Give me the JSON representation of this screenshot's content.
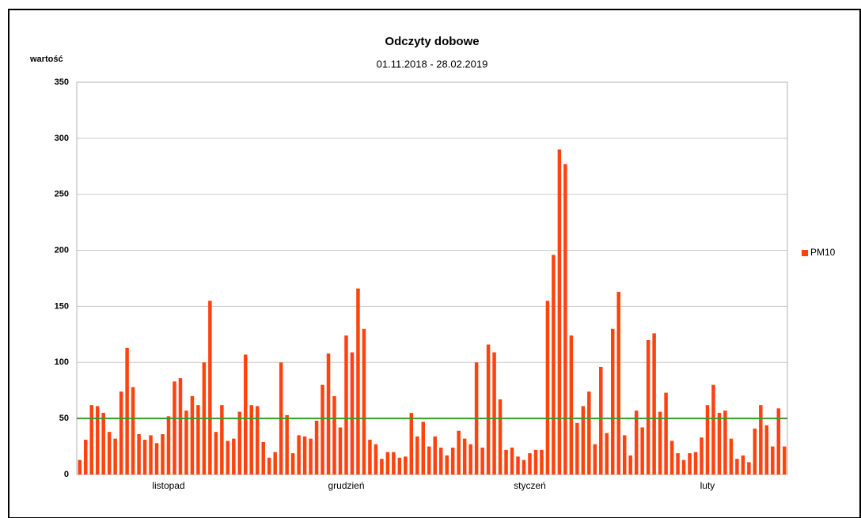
{
  "chart_data": {
    "type": "bar",
    "title": "Odczyty dobowe",
    "subtitle": "01.11.2018 - 28.02.2019",
    "y_label": "wartość",
    "categories": [
      null,
      null,
      null,
      null,
      null,
      null,
      null,
      null,
      null,
      null,
      null,
      null,
      null,
      null,
      null,
      "listopad",
      null,
      null,
      null,
      null,
      null,
      null,
      null,
      null,
      null,
      null,
      null,
      null,
      null,
      null,
      null,
      null,
      null,
      null,
      null,
      null,
      null,
      null,
      null,
      null,
      null,
      null,
      null,
      null,
      null,
      "grudzień",
      null,
      null,
      null,
      null,
      null,
      null,
      null,
      null,
      null,
      null,
      null,
      null,
      null,
      null,
      null,
      null,
      null,
      null,
      null,
      null,
      null,
      null,
      null,
      null,
      null,
      null,
      null,
      null,
      null,
      null,
      "styczeń",
      null,
      null,
      null,
      null,
      null,
      null,
      null,
      null,
      null,
      null,
      null,
      null,
      null,
      null,
      null,
      null,
      null,
      null,
      null,
      null,
      null,
      null,
      null,
      null,
      null,
      null,
      null,
      null,
      null,
      "luty",
      null,
      null,
      null,
      null,
      null,
      null,
      null,
      null,
      null,
      null,
      null,
      null,
      null
    ],
    "series": [
      {
        "name": "PM10",
        "color": "#ff420e",
        "values": [
          13,
          31,
          62,
          61,
          55,
          38,
          32,
          74,
          113,
          78,
          36,
          31,
          35,
          28,
          36,
          52,
          83,
          86,
          57,
          70,
          62,
          100,
          155,
          38,
          62,
          30,
          32,
          56,
          107,
          62,
          61,
          29,
          15,
          20,
          100,
          53,
          19,
          35,
          34,
          32,
          48,
          80,
          108,
          70,
          42,
          124,
          109,
          166,
          130,
          31,
          27,
          14,
          20,
          20,
          15,
          16,
          55,
          34,
          47,
          25,
          34,
          24,
          17,
          24,
          39,
          32,
          27,
          100,
          24,
          116,
          109,
          67,
          22,
          24,
          16,
          13,
          19,
          22,
          22,
          155,
          196,
          290,
          277,
          124,
          46,
          61,
          74,
          27,
          96,
          37,
          130,
          163,
          35,
          17,
          57,
          42,
          120,
          126,
          56,
          73,
          30,
          19,
          13,
          19,
          20,
          33,
          62,
          80,
          55,
          57,
          32,
          14,
          17,
          11,
          41,
          62,
          44,
          25,
          59,
          25
        ]
      }
    ],
    "reference_line": {
      "value": 50,
      "color": "#3a9a2a"
    },
    "ylim": [
      0,
      350
    ],
    "yticks": [
      0,
      50,
      100,
      150,
      200,
      250,
      300,
      350
    ],
    "grid": true,
    "legend": "right"
  }
}
